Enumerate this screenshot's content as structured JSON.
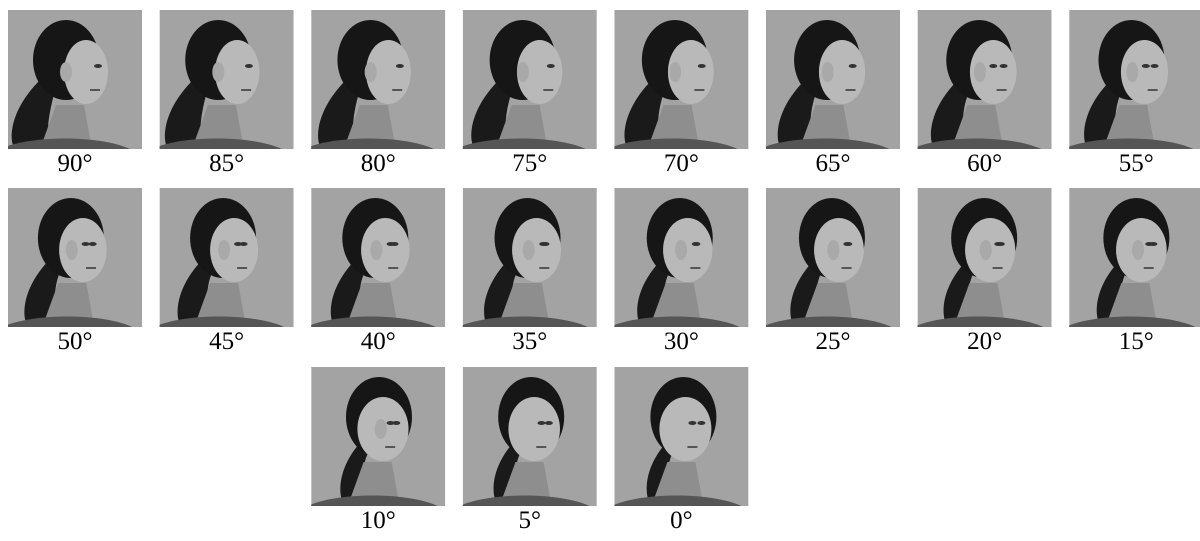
{
  "panels": [
    {
      "label": "90°"
    },
    {
      "label": "85°"
    },
    {
      "label": "80°"
    },
    {
      "label": "75°"
    },
    {
      "label": "70°"
    },
    {
      "label": "65°"
    },
    {
      "label": "60°"
    },
    {
      "label": "55°"
    },
    {
      "label": "50°"
    },
    {
      "label": "45°"
    },
    {
      "label": "40°"
    },
    {
      "label": "35°"
    },
    {
      "label": "30°"
    },
    {
      "label": "25°"
    },
    {
      "label": "20°"
    },
    {
      "label": "15°"
    },
    {
      "label": "10°"
    },
    {
      "label": "5°"
    },
    {
      "label": "0°"
    }
  ]
}
